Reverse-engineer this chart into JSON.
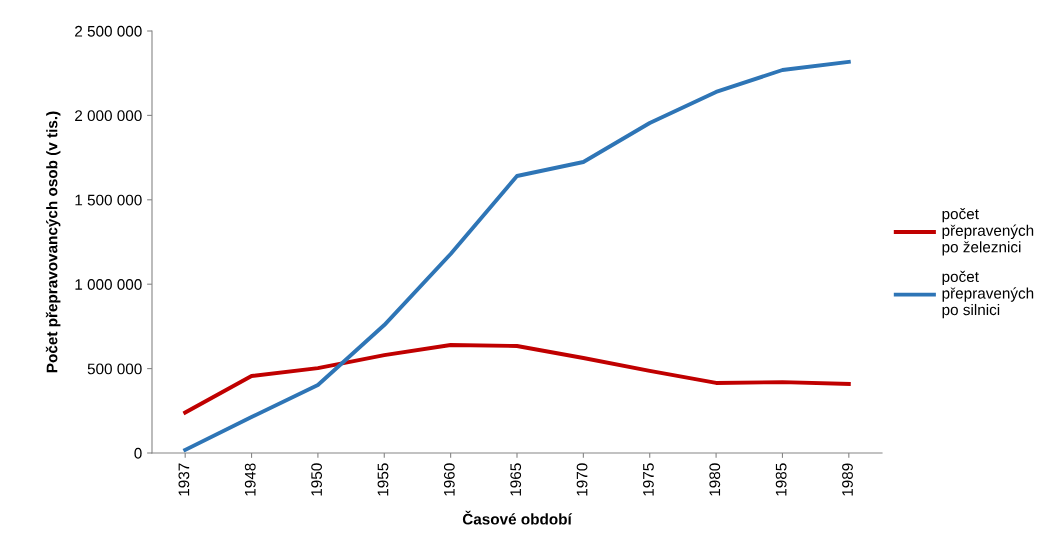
{
  "chart_data": {
    "type": "line",
    "xlabel": "Časové období",
    "ylabel": "Počet přepravovancých osob (v tis.)",
    "categories": [
      "1937",
      "1948",
      "1950",
      "1955",
      "1960",
      "1965",
      "1970",
      "1975",
      "1980",
      "1985",
      "1989"
    ],
    "series": [
      {
        "name": "počet\npřepravených\npo železnici",
        "color": "#c00000",
        "values": [
          240000,
          456000,
          503000,
          580000,
          640000,
          634000,
          563000,
          486000,
          415000,
          420000,
          409000
        ]
      },
      {
        "name": "počet\npřepravených\npo silnici",
        "color": "#2e75b6",
        "values": [
          18000,
          213000,
          403000,
          758000,
          1179000,
          1641000,
          1724000,
          1955000,
          2139000,
          2269000,
          2317000
        ]
      }
    ],
    "ylim": [
      0,
      2500000
    ],
    "yticks": [
      0,
      {
        "value": 500000,
        "label": "500 000"
      },
      {
        "value": 1000000,
        "label": "1 000 000"
      },
      {
        "value": 1500000,
        "label": "1 500 000"
      },
      {
        "value": 2000000,
        "label": "2 000 000"
      },
      {
        "value": 2500000,
        "label": "2 500 000"
      }
    ],
    "grid": false,
    "legend": "right",
    "marker": "none",
    "line_style": "solid"
  }
}
